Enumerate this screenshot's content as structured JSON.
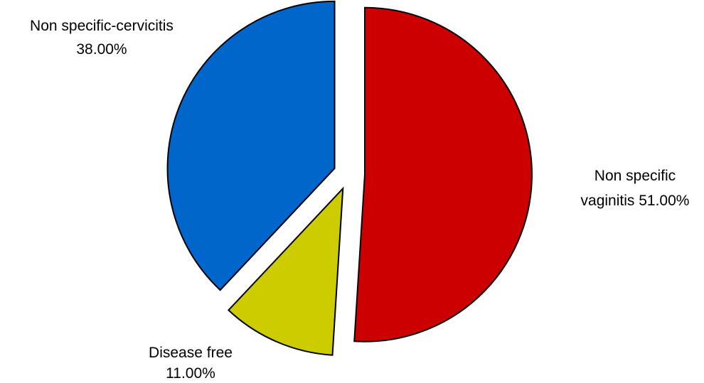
{
  "chart_data": {
    "type": "pie",
    "title": "",
    "exploded": true,
    "slices": [
      {
        "label": "Non specific vaginitis",
        "value": 51.0,
        "value_label": "51.00%",
        "color": "#cc0000"
      },
      {
        "label": "Disease free",
        "value": 11.0,
        "value_label": "11.00%",
        "color": "#cccc00"
      },
      {
        "label": "Non specific-cervicitis",
        "value": 38.0,
        "value_label": "38.00%",
        "color": "#0066cc"
      }
    ],
    "labels": {
      "vaginitis_line1": "Non specific",
      "vaginitis_line2": "vaginitis 51.00%",
      "disease_free_line1": "Disease free",
      "disease_free_line2": "11.00%",
      "cervicitis_line1": "Non specific-cervicitis",
      "cervicitis_line2": "38.00%"
    }
  }
}
